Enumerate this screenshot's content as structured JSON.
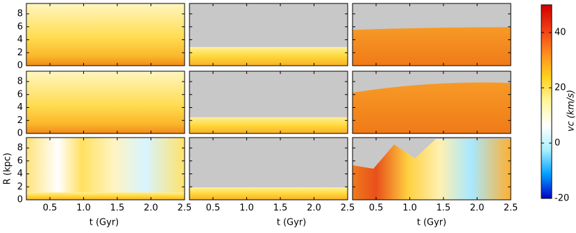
{
  "chart_data": {
    "type": "heatmap-grid",
    "rows": 3,
    "cols": 3,
    "xlabel": "t (Gyr)",
    "ylabel": "R (kpc)",
    "xlim": [
      0.15,
      2.5
    ],
    "xticks": [
      0.5,
      {
        "value": 1.0,
        "label": "1.0"
      },
      1.5,
      {
        "value": 2.0,
        "label": "2.0"
      },
      2.5
    ],
    "ylim": [
      0,
      9.6
    ],
    "yticks": [
      0,
      2,
      4,
      6,
      8
    ],
    "colorbar": {
      "label": "vc (km/s)",
      "lim": [
        -20,
        50
      ],
      "ticks": [
        -20,
        0,
        20,
        40
      ],
      "colors": [
        "#0000c8",
        "#00a0ff",
        "#a8f0ff",
        "#ffffff",
        "#fff6a0",
        "#ffd21e",
        "#ff8c1e",
        "#f03c14",
        "#d20000"
      ]
    }
  }
}
